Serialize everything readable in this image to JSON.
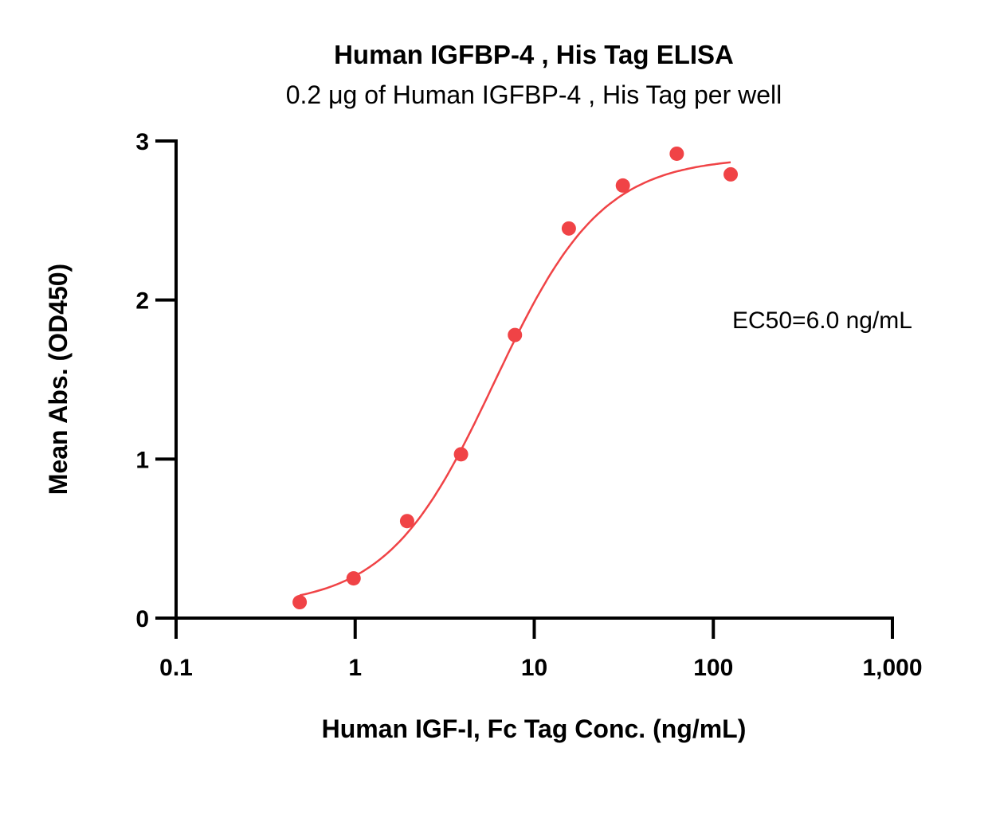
{
  "chart_data": {
    "type": "scatter",
    "title": "Human IGFBP-4 , His Tag ELISA",
    "subtitle": "0.2 μg of Human IGFBP-4 , His Tag per well",
    "xlabel": "Human IGF-I, Fc Tag Conc. (ng/mL)",
    "ylabel": "Mean Abs. (OD450)",
    "x_scale": "log",
    "xlim": [
      0.1,
      1000
    ],
    "ylim": [
      0,
      3
    ],
    "x_ticks": [
      0.1,
      1,
      10,
      100,
      1000
    ],
    "x_tick_labels": [
      "0.1",
      "1",
      "10",
      "100",
      "1,000"
    ],
    "y_ticks": [
      0,
      1,
      2,
      3
    ],
    "y_tick_labels": [
      "0",
      "1",
      "2",
      "3"
    ],
    "grid": false,
    "annotation": "EC50=6.0 ng/mL",
    "series": [
      {
        "color": "#f04346",
        "x": [
          0.49,
          0.98,
          1.95,
          3.9,
          7.8,
          15.6,
          31.25,
          62.5,
          125
        ],
        "y": [
          0.1,
          0.25,
          0.61,
          1.03,
          1.78,
          2.45,
          2.72,
          2.92,
          2.79
        ]
      }
    ],
    "fit_curve": {
      "type": "4PL",
      "bottom": 0.07,
      "top": 2.9,
      "ec50": 6.0,
      "hill": 1.45,
      "x_range": [
        0.49,
        125
      ]
    }
  }
}
